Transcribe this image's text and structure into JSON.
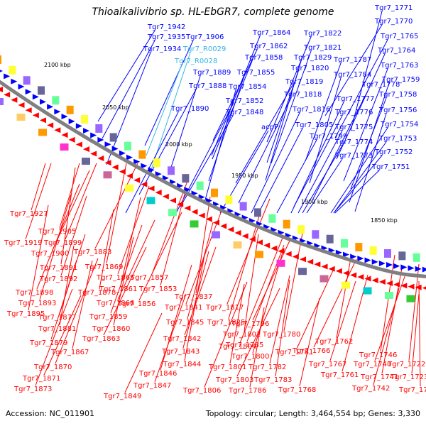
{
  "title": "Thioalkalivibrio sp. HL-EbGR7, complete genome",
  "footer": {
    "accession": "Accession: NC_011901",
    "summary": "Topology: circular; Length: 3,464,554 bp; Genes: 3,330"
  },
  "colors": {
    "forward": "#0000ff",
    "reverse": "#ff0000",
    "rna": "#33b5e5",
    "backbone": "#808080"
  },
  "ticks": [
    "2100 kbp",
    "2050 kbp",
    "2000 kbp",
    "1950 kbp",
    "1900 kbp",
    "1850 kbp"
  ],
  "forward_labels": [
    "Tgr7_1942",
    "Tgr7_1935",
    "Tgr7_1906",
    "Tgr7_1934",
    "Tgr7_R0029",
    "Tgr7_R0028",
    "Tgr7_1889",
    "Tgr7_1888",
    "Tgr7_1890",
    "Tgr7_1864",
    "Tgr7_1862",
    "Tgr7_1858",
    "Tgr7_1855",
    "Tgr7_1854",
    "Tgr7_1852",
    "Tgr7_1848",
    "acpP",
    "Tgr7_1822",
    "Tgr7_1821",
    "Tgr7_1829",
    "Tgr7_1820",
    "Tgr7_1819",
    "Tgr7_1818",
    "Tgr7_1816",
    "Tgr7_1805",
    "Tgr7_1799",
    "Tgr7_1787",
    "Tgr7_1784",
    "Tgr7_1778",
    "Tgr7_1777",
    "Tgr7_1776",
    "Tgr7_1775",
    "Tgr7_1774",
    "Tgr7_1773",
    "Tgr7_1771",
    "Tgr7_1770",
    "Tgr7_1765",
    "Tgr7_1764",
    "Tgr7_1763",
    "Tgr7_1759",
    "Tgr7_1758",
    "Tgr7_1756",
    "Tgr7_1754",
    "Tgr7_1753",
    "Tgr7_1752",
    "Tgr7_1751"
  ],
  "reverse_labels": [
    "Tgr7_1927",
    "Tgr7_1905",
    "Tgr7_1919",
    "Tgr7_1899",
    "Tgr7_1900",
    "Tgr7_1883",
    "Tgr7_1891",
    "Tgr7_1869",
    "Tgr7_1892",
    "Tgr7_1865",
    "Tgr7_1857",
    "Tgr7_1898",
    "Tgr7_1878",
    "Tgr7_1861",
    "Tgr7_1853",
    "Tgr7_1893",
    "Tgr7_1866",
    "Tgr7_1856",
    "Tgr7_1837",
    "Tgr7_1895",
    "Tgr7_1877",
    "Tgr7_1859",
    "Tgr7_1841",
    "Tgr7_1817",
    "Tgr7_1881",
    "Tgr7_1860",
    "Tgr7_1845",
    "Tgr7_1825",
    "Tgr7_1796",
    "Tgr7_1863",
    "Tgr7_1802",
    "Tgr7_1780",
    "Tgr7_1879",
    "Tgr7_1842",
    "Tgr7_1785",
    "Tgr7_1804",
    "Tgr7_1762",
    "Tgr7_1867",
    "Tgr7_1843",
    "Tgr7_1800",
    "Tgr7_1781",
    "Tgr7_1766",
    "Tgr7_1746",
    "Tgr7_1844",
    "Tgr7_1767",
    "Tgr7_1740",
    "Tgr7_1722",
    "Tgr7_1870",
    "Tgr7_1801",
    "Tgr7_1782",
    "Tgr7_1761",
    "Tgr7_1846",
    "Tgr7_1871",
    "Tgr7_1803",
    "Tgr7_1783",
    "Tgr7_1741",
    "Tgr7_1723",
    "Tgr7_1847",
    "Tgr7_1873",
    "Tgr7_1806",
    "Tgr7_1786",
    "Tgr7_1768",
    "Tgr7_1742",
    "Tgr7_1724",
    "Tgr7_1849"
  ]
}
